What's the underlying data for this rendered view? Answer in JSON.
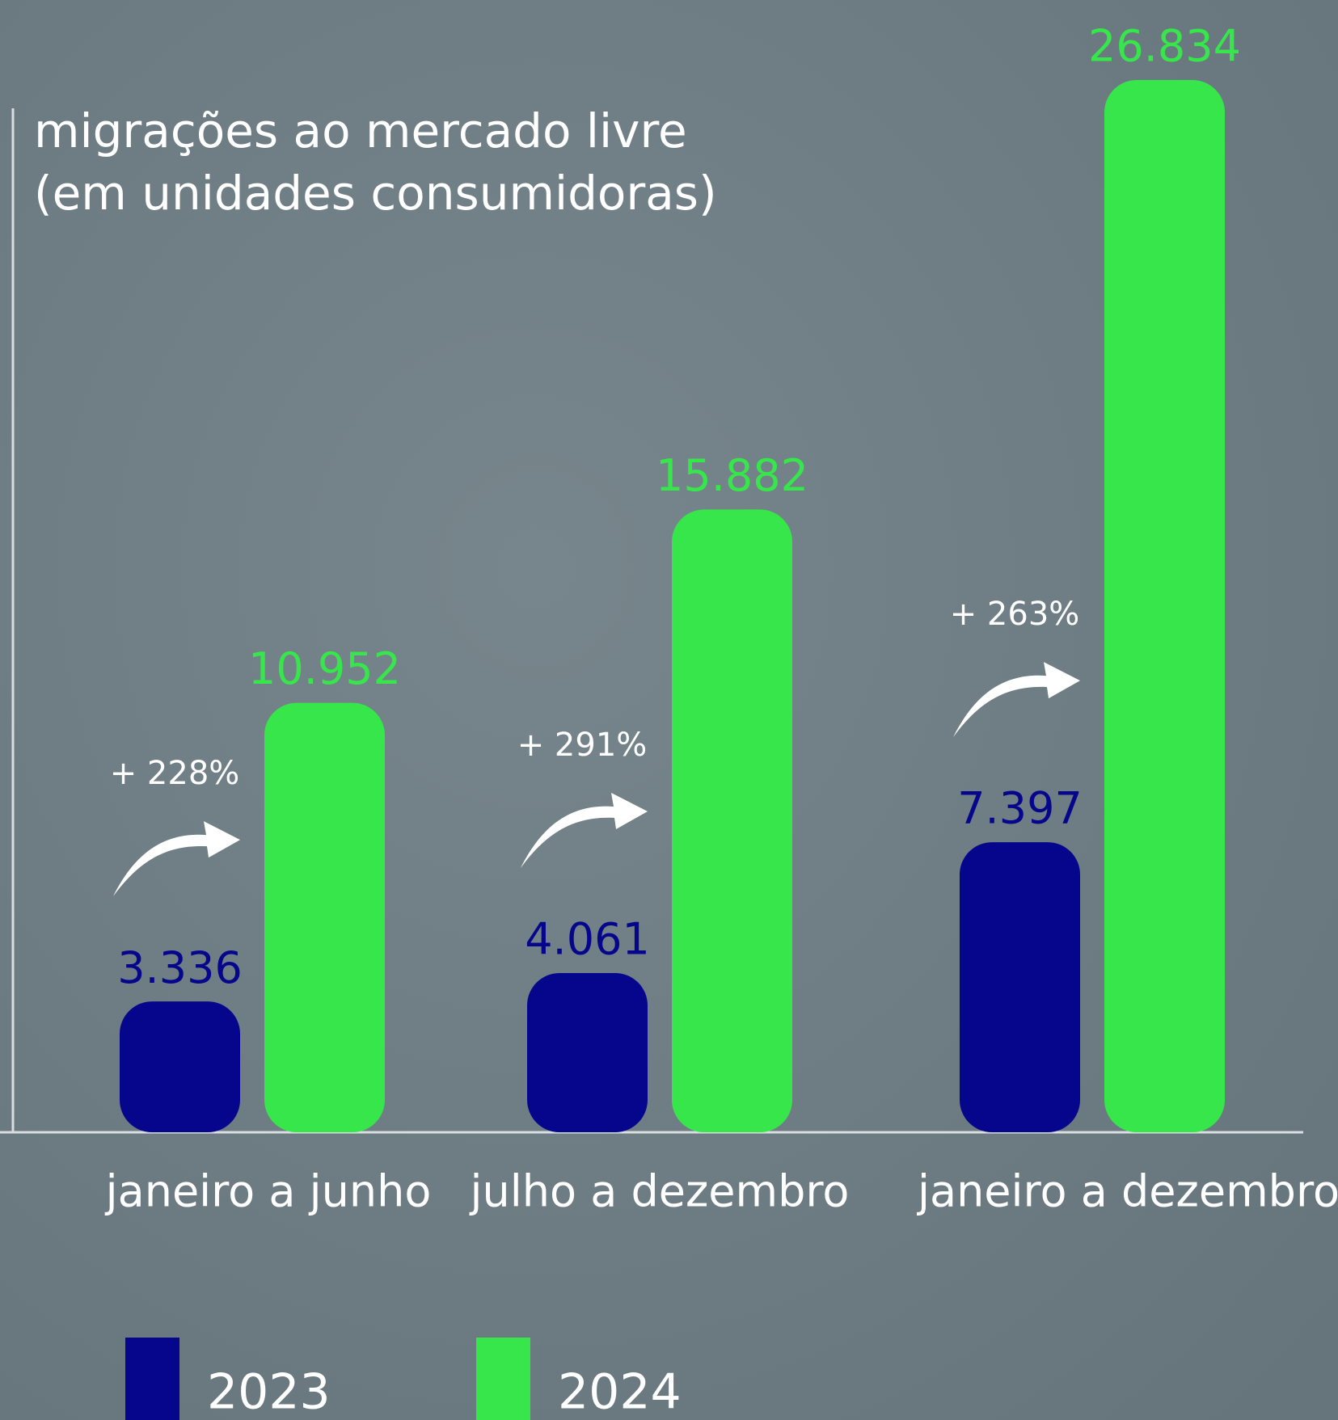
{
  "chart_data": {
    "type": "bar",
    "title": [
      "migrações ao mercado livre",
      "(em unidades consumidoras)"
    ],
    "categories": [
      "janeiro a junho",
      "julho a dezembro",
      "janeiro a dezembro"
    ],
    "series": [
      {
        "name": "2023",
        "color": "#06068c",
        "values": [
          3336,
          4061,
          7397
        ],
        "value_labels": [
          "3.336",
          "4.061",
          "7.397"
        ]
      },
      {
        "name": "2024",
        "color": "#36e64b",
        "values": [
          10952,
          15882,
          26834
        ],
        "value_labels": [
          "10.952",
          "15.882",
          "26.834"
        ]
      }
    ],
    "annotations": [
      "+ 228%",
      "+ 291%",
      "+ 263%"
    ]
  }
}
